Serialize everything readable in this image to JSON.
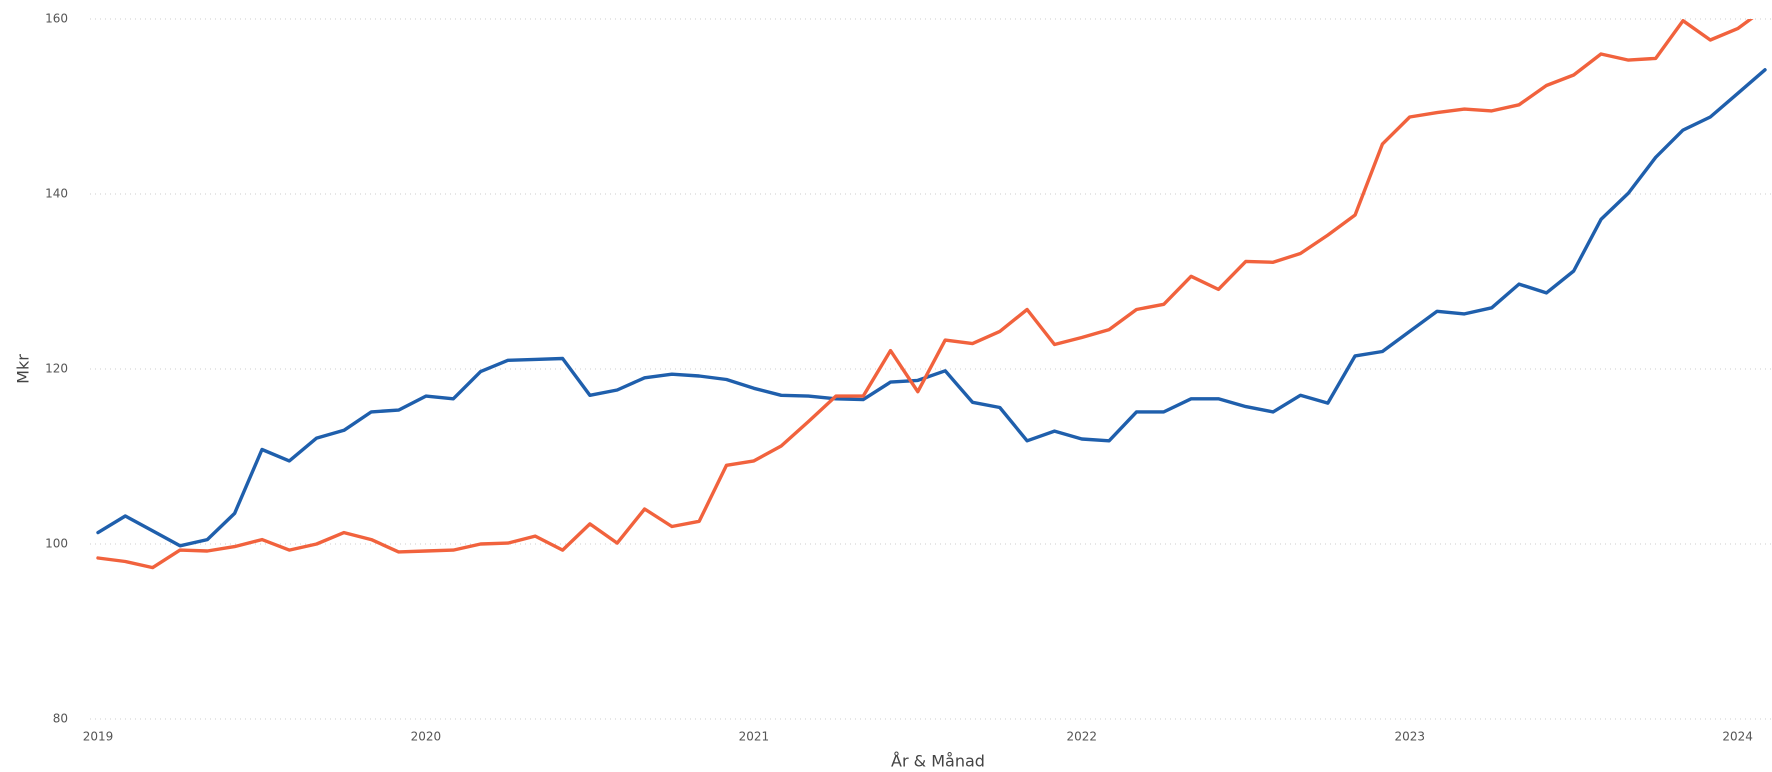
{
  "chart_data": {
    "type": "line",
    "x_label": "År & Månad",
    "y_label": "Mkr",
    "categories": [
      "2019",
      null,
      null,
      null,
      null,
      null,
      null,
      null,
      null,
      null,
      null,
      null,
      "2020",
      null,
      null,
      null,
      null,
      null,
      null,
      null,
      null,
      null,
      null,
      null,
      "2021",
      null,
      null,
      null,
      null,
      null,
      null,
      null,
      null,
      null,
      null,
      null,
      "2022",
      null,
      null,
      null,
      null,
      null,
      null,
      null,
      null,
      null,
      null,
      null,
      "2023",
      null,
      null,
      null,
      null,
      null,
      null,
      null,
      null,
      null,
      null,
      null,
      "2024",
      null
    ],
    "series": [
      {
        "color": "#1f5fac",
        "values": [
          101.3,
          103.2,
          101.5,
          99.8,
          100.5,
          103.5,
          110.8,
          109.5,
          112.1,
          113.0,
          115.1,
          115.3,
          116.9,
          116.6,
          119.7,
          121.0,
          121.1,
          121.2,
          117.0,
          117.6,
          119.0,
          119.4,
          119.2,
          118.8,
          117.8,
          117.0,
          116.9,
          116.6,
          116.5,
          118.5,
          118.7,
          119.8,
          116.2,
          115.6,
          111.8,
          112.9,
          112.0,
          111.8,
          115.1,
          115.1,
          116.6,
          116.6,
          115.7,
          115.1,
          117.0,
          116.1,
          121.5,
          122.0,
          124.3,
          126.6,
          126.3,
          127.0,
          129.7,
          128.7,
          131.2,
          137.1,
          140.1,
          144.2,
          147.3,
          148.8,
          151.5,
          154.2
        ]
      },
      {
        "color": "#f1623d",
        "values": [
          98.4,
          98.0,
          97.3,
          99.3,
          99.2,
          99.7,
          100.5,
          99.3,
          100.0,
          101.3,
          100.5,
          99.1,
          99.2,
          99.3,
          100.0,
          100.1,
          100.9,
          99.3,
          102.3,
          100.1,
          104.0,
          102.0,
          102.6,
          109.0,
          109.5,
          111.2,
          114.0,
          116.9,
          116.9,
          122.1,
          117.4,
          123.3,
          122.9,
          124.3,
          126.8,
          122.8,
          123.6,
          124.5,
          126.8,
          127.4,
          130.6,
          129.1,
          132.3,
          132.2,
          133.2,
          135.3,
          137.6,
          145.7,
          148.8,
          149.3,
          149.7,
          149.5,
          150.2,
          152.4,
          153.6,
          156.0,
          155.3,
          155.5,
          159.8,
          157.6,
          158.9,
          161.2
        ]
      }
    ],
    "ylim": [
      80,
      160
    ],
    "yticks": [
      80,
      100,
      120,
      140,
      160
    ],
    "grid": true
  }
}
